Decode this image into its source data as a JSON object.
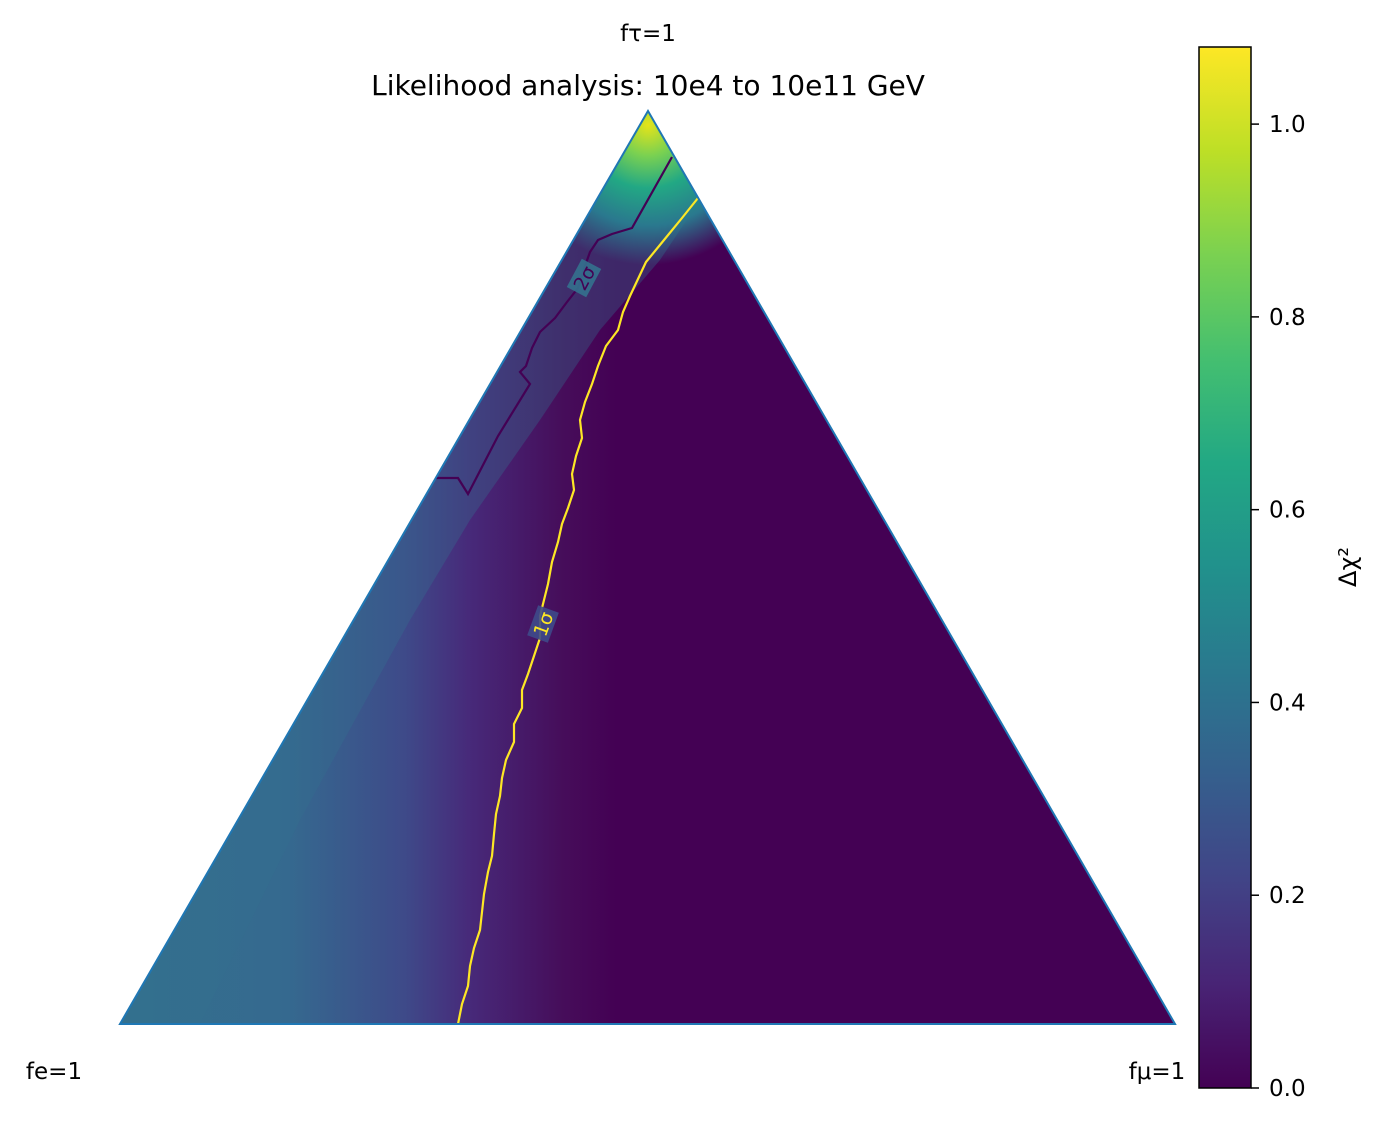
{
  "chart_data": {
    "type": "heatmap",
    "title": "Likelihood analysis: 10e4 to 10e11 GeV",
    "corner_labels": {
      "top": "fτ=1",
      "left": "fe=1",
      "right": "fμ=1"
    },
    "colorbar": {
      "label": "Δχ²",
      "range": [
        0,
        1.08
      ],
      "ticks": [
        "0.0",
        "0.2",
        "0.4",
        "0.6",
        "0.8",
        "1.0"
      ],
      "tick_values": [
        0,
        0.2,
        0.4,
        0.6,
        0.8,
        1.0
      ],
      "colormap": "viridis"
    },
    "contours": [
      {
        "label": "1σ",
        "color": "#fde725"
      },
      {
        "label": "2σ",
        "color": "#440154"
      }
    ],
    "colors": {
      "edge": "#1f77b4"
    }
  }
}
